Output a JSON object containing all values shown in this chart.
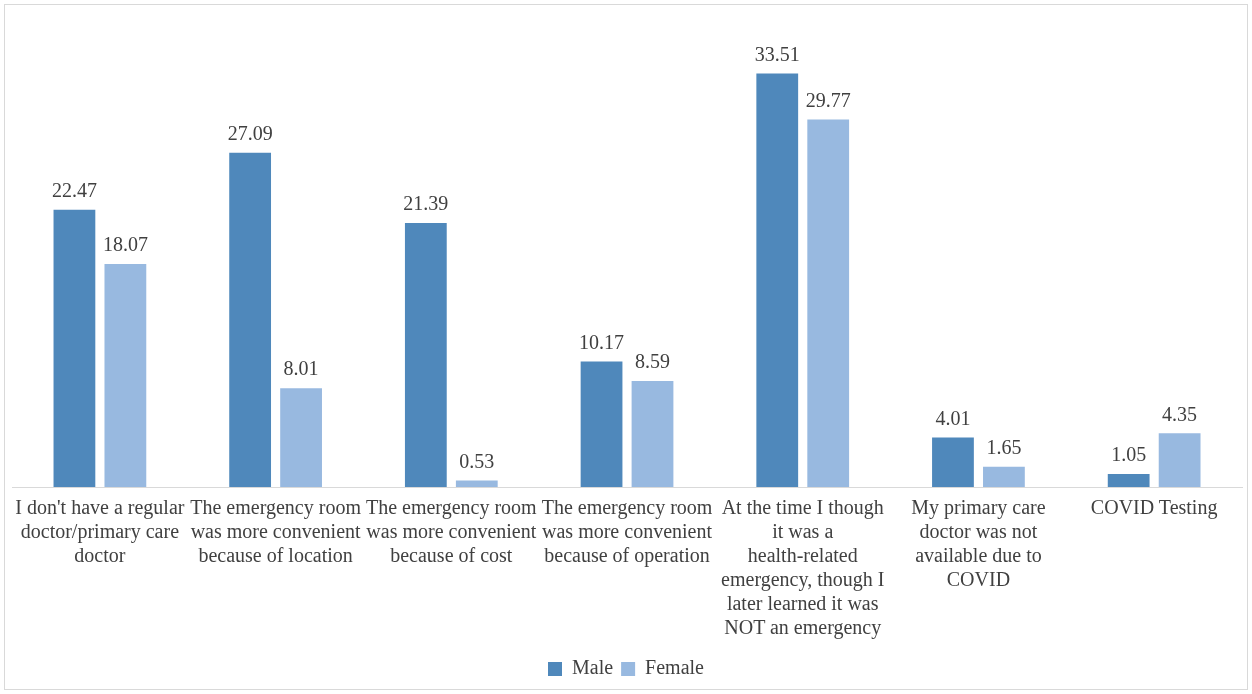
{
  "chart_data": {
    "type": "bar",
    "categories": [
      "I don't have a regular doctor/primary care doctor",
      "The emergency room was more convenient because of location",
      "The emergency room was more convenient because of cost",
      "The emergency room was more convenient because of operation",
      "At the time I though it was a health-related emergency, though I later learned it was NOT an emergency",
      "My primary care doctor was not available due to COVID",
      "COVID Testing"
    ],
    "series": [
      {
        "name": "Male",
        "color": "#4f88bb",
        "values": [
          22.47,
          27.09,
          21.39,
          10.17,
          33.51,
          4.01,
          1.05
        ]
      },
      {
        "name": "Female",
        "color": "#98b9e0",
        "values": [
          18.07,
          8.01,
          0.53,
          8.59,
          29.77,
          1.65,
          4.35
        ]
      }
    ],
    "data_labels": true,
    "legend": "bottom",
    "grid": false
  }
}
